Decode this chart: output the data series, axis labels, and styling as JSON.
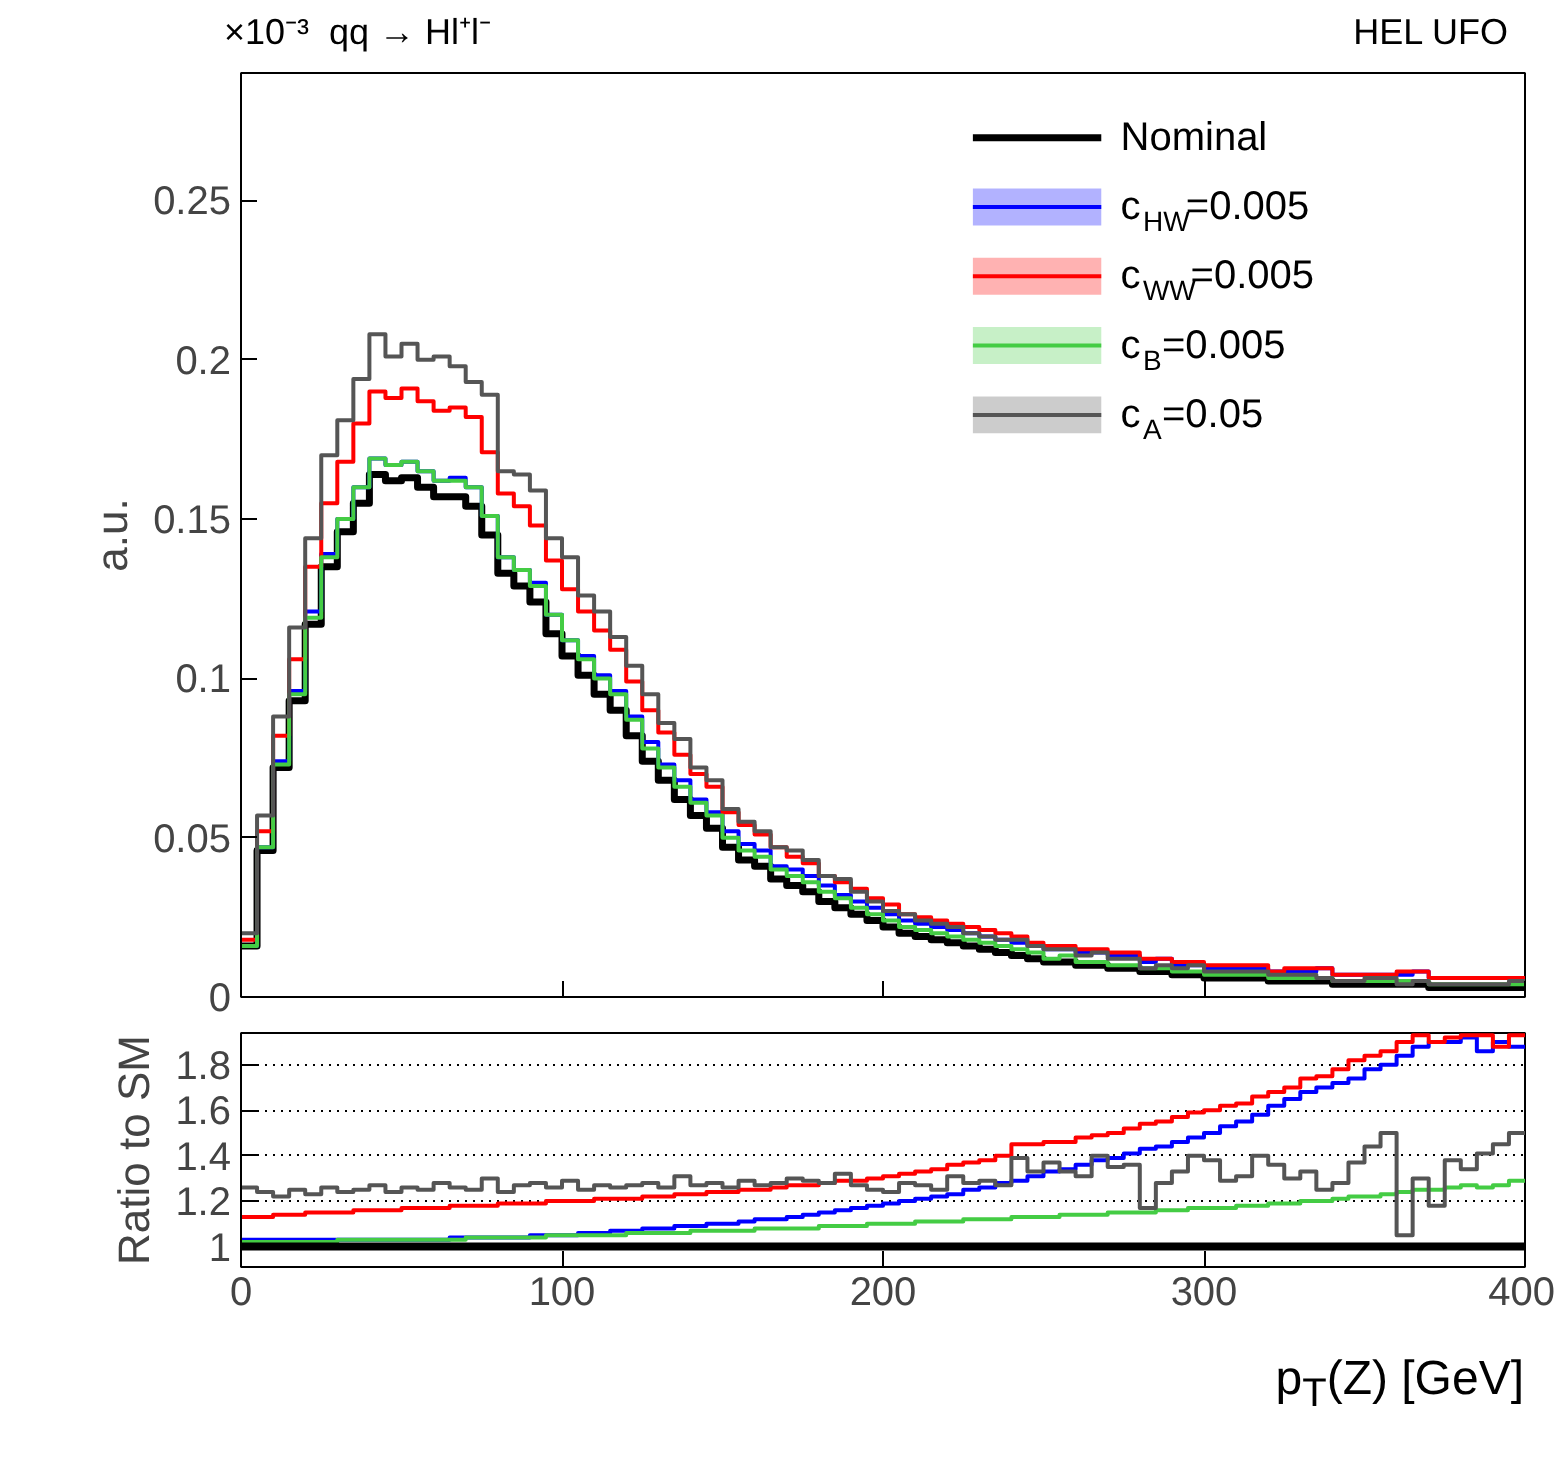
{
  "chart_data": [
    {
      "type": "histogram",
      "title": "qq → Hl⁺l⁻",
      "ylabel": "a.u.",
      "annotations": [
        "×10⁻³",
        "HEL UFO"
      ],
      "bins": [
        0,
        5,
        10,
        15,
        20,
        25,
        30,
        35,
        40,
        45,
        50,
        55,
        60,
        65,
        70,
        75,
        80,
        85,
        90,
        95,
        100,
        105,
        110,
        115,
        120,
        125,
        130,
        135,
        140,
        145,
        150,
        155,
        160,
        165,
        170,
        175,
        180,
        185,
        190,
        195,
        200,
        205,
        210,
        215,
        220,
        225,
        230,
        235,
        240,
        245,
        250,
        255,
        260,
        265,
        270,
        275,
        280,
        285,
        290,
        295,
        300,
        305,
        310,
        315,
        320,
        325,
        330,
        335,
        340,
        345,
        350,
        355,
        360,
        365,
        370,
        375,
        380,
        385,
        390,
        395,
        400
      ],
      "xlim": [
        0,
        400
      ],
      "xticks": [
        0,
        100,
        200,
        300,
        400
      ],
      "ylim": [
        0,
        0.29
      ],
      "yticks": [
        0,
        0.05,
        0.1,
        0.15,
        0.2,
        0.25
      ],
      "tick_labels": "y",
      "legend": "top right",
      "series": [
        {
          "name": "Nominal",
          "color": "#000000",
          "values": [
            0.016,
            0.046,
            0.072,
            0.093,
            0.117,
            0.135,
            0.146,
            0.155,
            0.164,
            0.162,
            0.163,
            0.16,
            0.157,
            0.157,
            0.154,
            0.145,
            0.133,
            0.129,
            0.124,
            0.114,
            0.107,
            0.101,
            0.095,
            0.09,
            0.082,
            0.074,
            0.068,
            0.062,
            0.057,
            0.053,
            0.047,
            0.043,
            0.041,
            0.037,
            0.035,
            0.033,
            0.03,
            0.028,
            0.026,
            0.024,
            0.022,
            0.02,
            0.019,
            0.018,
            0.017,
            0.016,
            0.015,
            0.014,
            0.013,
            0.012,
            0.011,
            0.011,
            0.01,
            0.01,
            0.009,
            0.009,
            0.008,
            0.008,
            0.007,
            0.007,
            0.006,
            0.006,
            0.006,
            0.006,
            0.005,
            0.005,
            0.005,
            0.005,
            0.004,
            0.004,
            0.004,
            0.004,
            0.004,
            0.004,
            0.003,
            0.003,
            0.003,
            0.003,
            0.003,
            0.003
          ]
        },
        {
          "name": "c$_{HW}$=0.005",
          "color": "#0000ff",
          "values": [
            0.016,
            0.047,
            0.074,
            0.096,
            0.121,
            0.139,
            0.15,
            0.16,
            0.169,
            0.167,
            0.168,
            0.165,
            0.162,
            0.163,
            0.16,
            0.151,
            0.138,
            0.134,
            0.13,
            0.12,
            0.112,
            0.107,
            0.101,
            0.096,
            0.088,
            0.08,
            0.073,
            0.068,
            0.062,
            0.058,
            0.052,
            0.048,
            0.046,
            0.041,
            0.04,
            0.038,
            0.035,
            0.032,
            0.03,
            0.028,
            0.026,
            0.024,
            0.023,
            0.022,
            0.021,
            0.02,
            0.019,
            0.018,
            0.017,
            0.016,
            0.015,
            0.015,
            0.014,
            0.014,
            0.013,
            0.013,
            0.011,
            0.012,
            0.01,
            0.01,
            0.009,
            0.009,
            0.009,
            0.009,
            0.008,
            0.008,
            0.008,
            0.009,
            0.007,
            0.007,
            0.007,
            0.007,
            0.007,
            0.008,
            0.006,
            0.006,
            0.006,
            0.006,
            0.006,
            0.006
          ]
        },
        {
          "name": "c$_{WW}$=0.005",
          "color": "#ff0000",
          "values": [
            0.018,
            0.052,
            0.082,
            0.106,
            0.135,
            0.155,
            0.168,
            0.18,
            0.19,
            0.188,
            0.191,
            0.187,
            0.184,
            0.185,
            0.182,
            0.171,
            0.158,
            0.154,
            0.148,
            0.137,
            0.128,
            0.121,
            0.115,
            0.109,
            0.099,
            0.09,
            0.083,
            0.076,
            0.07,
            0.066,
            0.058,
            0.054,
            0.051,
            0.047,
            0.044,
            0.042,
            0.038,
            0.036,
            0.034,
            0.031,
            0.029,
            0.026,
            0.025,
            0.024,
            0.023,
            0.022,
            0.021,
            0.02,
            0.019,
            0.017,
            0.016,
            0.016,
            0.015,
            0.015,
            0.014,
            0.014,
            0.012,
            0.012,
            0.011,
            0.011,
            0.01,
            0.01,
            0.01,
            0.01,
            0.008,
            0.009,
            0.009,
            0.009,
            0.007,
            0.007,
            0.007,
            0.007,
            0.008,
            0.008,
            0.006,
            0.006,
            0.006,
            0.006,
            0.006,
            0.006
          ]
        },
        {
          "name": "c$_{B}$=0.005",
          "color": "#44cc44",
          "values": [
            0.016,
            0.047,
            0.073,
            0.095,
            0.119,
            0.138,
            0.15,
            0.16,
            0.169,
            0.167,
            0.168,
            0.165,
            0.162,
            0.162,
            0.16,
            0.151,
            0.138,
            0.134,
            0.129,
            0.12,
            0.112,
            0.106,
            0.1,
            0.095,
            0.087,
            0.078,
            0.072,
            0.066,
            0.061,
            0.057,
            0.05,
            0.046,
            0.044,
            0.04,
            0.038,
            0.036,
            0.033,
            0.031,
            0.028,
            0.026,
            0.024,
            0.022,
            0.021,
            0.02,
            0.019,
            0.018,
            0.017,
            0.016,
            0.015,
            0.014,
            0.012,
            0.013,
            0.011,
            0.011,
            0.01,
            0.01,
            0.009,
            0.009,
            0.008,
            0.008,
            0.007,
            0.007,
            0.007,
            0.007,
            0.006,
            0.006,
            0.006,
            0.006,
            0.005,
            0.005,
            0.005,
            0.005,
            0.005,
            0.005,
            0.004,
            0.004,
            0.004,
            0.004,
            0.004,
            0.004
          ]
        },
        {
          "name": "c$_{A}$=0.05",
          "color": "#555555",
          "values": [
            0.02,
            0.057,
            0.088,
            0.116,
            0.144,
            0.17,
            0.181,
            0.194,
            0.208,
            0.201,
            0.205,
            0.2,
            0.201,
            0.198,
            0.193,
            0.189,
            0.165,
            0.164,
            0.159,
            0.144,
            0.138,
            0.126,
            0.121,
            0.113,
            0.104,
            0.095,
            0.086,
            0.081,
            0.072,
            0.068,
            0.059,
            0.055,
            0.052,
            0.047,
            0.046,
            0.043,
            0.038,
            0.037,
            0.033,
            0.03,
            0.027,
            0.026,
            0.024,
            0.023,
            0.022,
            0.02,
            0.019,
            0.018,
            0.018,
            0.016,
            0.015,
            0.015,
            0.013,
            0.014,
            0.012,
            0.012,
            0.009,
            0.01,
            0.009,
            0.01,
            0.008,
            0.008,
            0.008,
            0.008,
            0.007,
            0.007,
            0.007,
            0.006,
            0.005,
            0.005,
            0.006,
            0.006,
            0.004,
            0.005,
            0.004,
            0.004,
            0.004,
            0.004,
            0.004,
            0.005
          ]
        }
      ]
    },
    {
      "type": "histogram",
      "xlabel": "p$_{T}$(Z) [GeV]",
      "ylabel": "Ratio to SM",
      "bins": [
        0,
        5,
        10,
        15,
        20,
        25,
        30,
        35,
        40,
        45,
        50,
        55,
        60,
        65,
        70,
        75,
        80,
        85,
        90,
        95,
        100,
        105,
        110,
        115,
        120,
        125,
        130,
        135,
        140,
        145,
        150,
        155,
        160,
        165,
        170,
        175,
        180,
        185,
        190,
        195,
        200,
        205,
        210,
        215,
        220,
        225,
        230,
        235,
        240,
        245,
        250,
        255,
        260,
        265,
        270,
        275,
        280,
        285,
        290,
        295,
        300,
        305,
        310,
        315,
        320,
        325,
        330,
        335,
        340,
        345,
        350,
        355,
        360,
        365,
        370,
        375,
        380,
        385,
        390,
        395,
        400
      ],
      "xlim": [
        0,
        400
      ],
      "xticks": [
        0,
        100,
        200,
        300,
        400
      ],
      "ylim": [
        0.91,
        1.94
      ],
      "yticks": [
        1,
        1.2,
        1.4,
        1.6,
        1.8
      ],
      "grid": "y",
      "ref_lines": [
        {
          "axis": "y",
          "value": 1,
          "color": "#000000"
        }
      ],
      "series": [
        {
          "color": "#0000ff",
          "values": [
            1.03,
            1.03,
            1.03,
            1.03,
            1.03,
            1.03,
            1.03,
            1.03,
            1.03,
            1.03,
            1.03,
            1.03,
            1.03,
            1.04,
            1.04,
            1.04,
            1.04,
            1.04,
            1.05,
            1.05,
            1.05,
            1.06,
            1.06,
            1.07,
            1.07,
            1.08,
            1.08,
            1.09,
            1.09,
            1.1,
            1.1,
            1.11,
            1.12,
            1.12,
            1.13,
            1.14,
            1.15,
            1.16,
            1.17,
            1.18,
            1.19,
            1.2,
            1.21,
            1.22,
            1.23,
            1.25,
            1.26,
            1.28,
            1.29,
            1.31,
            1.33,
            1.34,
            1.36,
            1.38,
            1.39,
            1.41,
            1.43,
            1.44,
            1.46,
            1.48,
            1.5,
            1.53,
            1.55,
            1.58,
            1.62,
            1.65,
            1.68,
            1.7,
            1.72,
            1.74,
            1.78,
            1.8,
            1.84,
            1.88,
            1.9,
            1.9,
            1.92,
            1.86,
            1.9,
            1.88
          ]
        },
        {
          "color": "#ff0000",
          "values": [
            1.13,
            1.13,
            1.14,
            1.14,
            1.15,
            1.15,
            1.15,
            1.16,
            1.16,
            1.16,
            1.17,
            1.17,
            1.17,
            1.18,
            1.18,
            1.18,
            1.19,
            1.19,
            1.19,
            1.2,
            1.2,
            1.2,
            1.21,
            1.21,
            1.21,
            1.22,
            1.22,
            1.23,
            1.23,
            1.24,
            1.24,
            1.25,
            1.25,
            1.26,
            1.27,
            1.27,
            1.28,
            1.29,
            1.29,
            1.3,
            1.31,
            1.32,
            1.33,
            1.34,
            1.36,
            1.37,
            1.38,
            1.4,
            1.45,
            1.45,
            1.46,
            1.46,
            1.48,
            1.49,
            1.5,
            1.52,
            1.54,
            1.55,
            1.57,
            1.59,
            1.6,
            1.62,
            1.63,
            1.66,
            1.68,
            1.7,
            1.74,
            1.75,
            1.78,
            1.82,
            1.84,
            1.86,
            1.9,
            1.93,
            1.9,
            1.92,
            1.93,
            1.93,
            1.88,
            1.93
          ]
        },
        {
          "color": "#44cc44",
          "values": [
            1.02,
            1.02,
            1.02,
            1.02,
            1.02,
            1.02,
            1.03,
            1.03,
            1.03,
            1.03,
            1.03,
            1.03,
            1.03,
            1.03,
            1.04,
            1.04,
            1.04,
            1.04,
            1.04,
            1.05,
            1.05,
            1.05,
            1.05,
            1.05,
            1.06,
            1.06,
            1.06,
            1.06,
            1.07,
            1.07,
            1.07,
            1.07,
            1.08,
            1.08,
            1.08,
            1.08,
            1.09,
            1.09,
            1.09,
            1.1,
            1.1,
            1.1,
            1.11,
            1.11,
            1.11,
            1.12,
            1.12,
            1.12,
            1.13,
            1.13,
            1.13,
            1.14,
            1.14,
            1.14,
            1.15,
            1.15,
            1.15,
            1.16,
            1.16,
            1.17,
            1.17,
            1.17,
            1.18,
            1.18,
            1.19,
            1.19,
            1.2,
            1.2,
            1.21,
            1.22,
            1.22,
            1.23,
            1.24,
            1.25,
            1.25,
            1.26,
            1.27,
            1.26,
            1.27,
            1.29
          ]
        },
        {
          "color": "#555555",
          "values": [
            1.26,
            1.24,
            1.22,
            1.25,
            1.23,
            1.26,
            1.24,
            1.25,
            1.27,
            1.24,
            1.26,
            1.25,
            1.28,
            1.26,
            1.25,
            1.3,
            1.24,
            1.27,
            1.28,
            1.26,
            1.29,
            1.25,
            1.27,
            1.26,
            1.27,
            1.28,
            1.26,
            1.31,
            1.27,
            1.28,
            1.26,
            1.29,
            1.27,
            1.28,
            1.3,
            1.29,
            1.28,
            1.32,
            1.27,
            1.25,
            1.24,
            1.28,
            1.27,
            1.25,
            1.31,
            1.28,
            1.29,
            1.27,
            1.39,
            1.33,
            1.37,
            1.33,
            1.31,
            1.4,
            1.35,
            1.36,
            1.17,
            1.28,
            1.33,
            1.4,
            1.38,
            1.29,
            1.31,
            1.4,
            1.36,
            1.3,
            1.33,
            1.25,
            1.28,
            1.37,
            1.44,
            1.5,
            1.05,
            1.3,
            1.18,
            1.38,
            1.34,
            1.41,
            1.45,
            1.5
          ]
        }
      ]
    }
  ]
}
